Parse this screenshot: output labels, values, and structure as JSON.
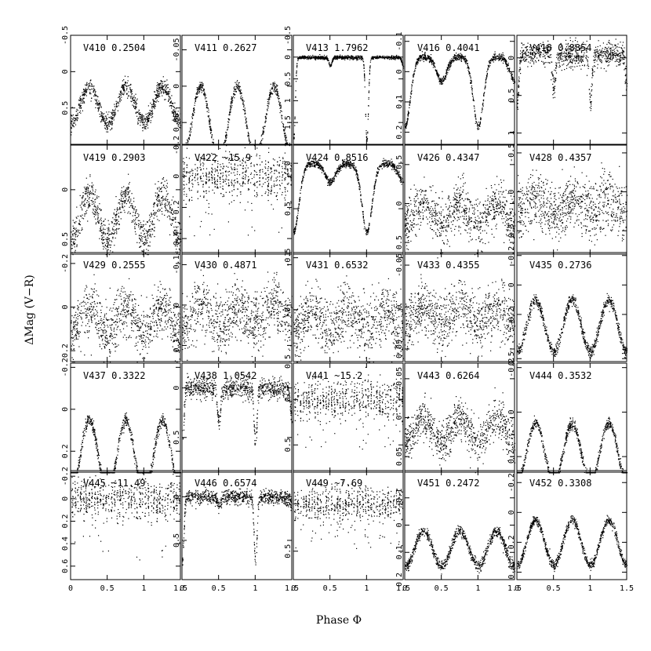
{
  "figure": {
    "xlabel": "Phase Φ",
    "ylabel": "ΔMag (V−R)"
  },
  "chart_data": {
    "type": "scatter",
    "rows": 5,
    "cols": 5,
    "xlim": [
      0,
      1.5
    ],
    "x_ticks": [
      0,
      0.5,
      1,
      1.5
    ],
    "x_tick_labels": [
      "0",
      "0.5",
      "1",
      "1.5"
    ],
    "y_inverted": true,
    "panels": [
      {
        "star": "V410",
        "period": "0.2504",
        "ylim": [
          -0.5,
          1.0
        ],
        "y_ticks": [
          -0.5,
          0,
          0.5
        ],
        "y_tick_labels": [
          "-0.5",
          "0",
          "0.5"
        ],
        "shape": "w_uma",
        "center": 0.2,
        "amp": 0.5,
        "noise": 0.06
      },
      {
        "star": "V411",
        "period": "0.2627",
        "ylim": [
          -0.07,
          0.08
        ],
        "y_ticks": [
          -0.05,
          0,
          0.05
        ],
        "y_tick_labels": [
          "-0.05",
          "0",
          "0.05"
        ],
        "shape": "w_uma",
        "center": 0.0,
        "amp": 0.1,
        "noise": 0.004
      },
      {
        "star": "V413",
        "period": "1.7962",
        "ylim": [
          -0.5,
          2.0
        ],
        "y_ticks": [
          -0.5,
          0,
          0.5,
          1,
          1.5,
          2
        ],
        "y_tick_labels": [
          "-0.5",
          "0",
          "0.5",
          "1",
          "1.5",
          "2"
        ],
        "shape": "algol_narrow",
        "center": 0.0,
        "amp": 1.9,
        "secondary": 0.2,
        "noise": 0.02
      },
      {
        "star": "V416",
        "period": "0.4041",
        "ylim": [
          -0.12,
          0.24
        ],
        "y_ticks": [
          -0.1,
          0,
          0.1,
          0.2
        ],
        "y_tick_labels": [
          "-0.1",
          "0",
          "0.1",
          "0.2"
        ],
        "shape": "algol",
        "center": -0.05,
        "amp": 0.23,
        "secondary": 0.08,
        "noise": 0.006
      },
      {
        "star": "V418",
        "period": "0.8854",
        "ylim": [
          -0.3,
          1.15
        ],
        "y_ticks": [
          0,
          0.5,
          1
        ],
        "y_tick_labels": [
          "0",
          "0.5",
          "1"
        ],
        "shape": "algol_narrow",
        "center": -0.05,
        "amp": 0.65,
        "secondary": 0.45,
        "noise": 0.08
      },
      {
        "star": "V419",
        "period": "0.2903",
        "ylim": [
          -0.45,
          0.65
        ],
        "y_ticks": [
          0,
          0.5
        ],
        "y_tick_labels": [
          "0",
          "0.5"
        ],
        "shape": "w_uma",
        "center": 0.05,
        "amp": 0.45,
        "noise": 0.09
      },
      {
        "star": "V422",
        "period": "~15.9",
        "ylim": [
          -0.2,
          0.5
        ],
        "y_ticks": [
          -0.2,
          0,
          0.2,
          0.4
        ],
        "y_tick_labels": [
          "-0.2",
          "0",
          "0.2",
          "0.4"
        ],
        "shape": "banded",
        "center": 0.0,
        "amp": 0.4,
        "noise": 0.04
      },
      {
        "star": "V424",
        "period": "0.8516",
        "ylim": [
          -0.2,
          1.0
        ],
        "y_ticks": [
          0,
          0.5,
          1
        ],
        "y_tick_labels": [
          "0",
          "0.5",
          "1"
        ],
        "shape": "algol",
        "center": 0.0,
        "amp": 0.75,
        "secondary": 0.2,
        "noise": 0.02
      },
      {
        "star": "V426",
        "period": "0.4347",
        "ylim": [
          -0.75,
          0.65
        ],
        "y_ticks": [
          -0.5,
          0,
          0.5
        ],
        "y_tick_labels": [
          "-0.5",
          "0",
          "0.5"
        ],
        "shape": "w_uma",
        "center": 0.0,
        "amp": 0.25,
        "noise": 0.15
      },
      {
        "star": "V428",
        "period": "0.4357",
        "ylim": [
          -0.6,
          0.8
        ],
        "y_ticks": [
          -0.5,
          0,
          0.5
        ],
        "y_tick_labels": [
          "-0.5",
          "0",
          "0.5"
        ],
        "shape": "w_uma",
        "center": 0.1,
        "amp": 0.15,
        "noise": 0.18
      },
      {
        "star": "V429",
        "period": "0.2555",
        "ylim": [
          -0.25,
          0.25
        ],
        "y_ticks": [
          -0.2,
          0,
          0.2
        ],
        "y_tick_labels": [
          "-0.2",
          "0",
          "0.2"
        ],
        "shape": "w_uma",
        "center": 0.0,
        "amp": 0.12,
        "noise": 0.06
      },
      {
        "star": "V430",
        "period": "0.4871",
        "ylim": [
          -0.13,
          0.14
        ],
        "y_ticks": [
          -0.1,
          0,
          0.1
        ],
        "y_tick_labels": [
          "-0.1",
          "0",
          "0.1"
        ],
        "shape": "w_uma",
        "center": 0.0,
        "amp": 0.05,
        "noise": 0.035
      },
      {
        "star": "V431",
        "period": "0.6532",
        "ylim": [
          -0.55,
          0.5
        ],
        "y_ticks": [
          -0.5,
          0,
          0.5
        ],
        "y_tick_labels": [
          "-0.5",
          "0",
          "0.5"
        ],
        "shape": "w_uma",
        "center": 0.0,
        "amp": 0.2,
        "noise": 0.14
      },
      {
        "star": "V433",
        "period": "0.4355",
        "ylim": [
          -0.065,
          0.065
        ],
        "y_ticks": [
          -0.05,
          0,
          0.05
        ],
        "y_tick_labels": [
          "-0.05",
          "0",
          "0.05"
        ],
        "shape": "w_uma",
        "center": 0.0,
        "amp": 0.02,
        "noise": 0.016
      },
      {
        "star": "V435",
        "period": "0.2736",
        "ylim": [
          -0.22,
          0.52
        ],
        "y_ticks": [
          -0.2,
          0,
          0.2,
          0.5
        ],
        "y_tick_labels": [
          "-0.2",
          "0",
          "0.2",
          "0.5"
        ],
        "shape": "w_uma",
        "center": 0.1,
        "amp": 0.35,
        "noise": 0.02
      },
      {
        "star": "V437",
        "period": "0.3322",
        "ylim": [
          -0.22,
          0.3
        ],
        "y_ticks": [
          -0.2,
          0,
          0.2
        ],
        "y_tick_labels": [
          "-0.2",
          "0",
          "0.2"
        ],
        "shape": "w_uma",
        "center": 0.05,
        "amp": 0.35,
        "noise": 0.015
      },
      {
        "star": "V438",
        "period": "1.0542",
        "ylim": [
          -0.25,
          0.85
        ],
        "y_ticks": [
          0,
          0.5
        ],
        "y_tick_labels": [
          "0",
          "0.5"
        ],
        "shape": "algol_narrow",
        "center": 0.0,
        "amp": 0.55,
        "secondary": 0.35,
        "noise": 0.05
      },
      {
        "star": "V441",
        "period": "~15.2",
        "ylim": [
          -0.4,
          0.8
        ],
        "y_ticks": [
          0,
          0.5
        ],
        "y_tick_labels": [
          "0",
          "0.5"
        ],
        "shape": "banded",
        "center": 0.0,
        "amp": 0.55,
        "noise": 0.06
      },
      {
        "star": "V443",
        "period": "0.6264",
        "ylim": [
          -0.07,
          0.07
        ],
        "y_ticks": [
          -0.05,
          0,
          0.05
        ],
        "y_tick_labels": [
          "-0.05",
          "0",
          "0.05"
        ],
        "shape": "w_uma",
        "center": 0.0,
        "amp": 0.03,
        "noise": 0.013
      },
      {
        "star": "V444",
        "period": "0.3532",
        "ylim": [
          -0.22,
          0.27
        ],
        "y_ticks": [
          -0.2,
          0,
          0.2
        ],
        "y_tick_labels": [
          "-0.2",
          "0",
          "0.2"
        ],
        "shape": "w_uma",
        "center": 0.05,
        "amp": 0.26,
        "noise": 0.012
      },
      {
        "star": "V445",
        "period": "~11.49",
        "ylim": [
          -0.25,
          0.72
        ],
        "y_ticks": [
          -0.2,
          0,
          0.2,
          0.4,
          0.6
        ],
        "y_tick_labels": [
          "-0.2",
          "0",
          "0.2",
          "0.4",
          "0.6"
        ],
        "shape": "banded",
        "center": 0.0,
        "amp": 0.55,
        "noise": 0.05
      },
      {
        "star": "V446",
        "period": "0.6574",
        "ylim": [
          -0.3,
          0.95
        ],
        "y_ticks": [
          0,
          0.5
        ],
        "y_tick_labels": [
          "0",
          "0.5"
        ],
        "shape": "algol_narrow",
        "center": 0.0,
        "amp": 0.75,
        "secondary": 0.1,
        "noise": 0.04
      },
      {
        "star": "V449",
        "period": "~7.69",
        "ylim": [
          -0.35,
          0.8
        ],
        "y_ticks": [
          0,
          0.5
        ],
        "y_tick_labels": [
          "0",
          "0.5"
        ],
        "shape": "banded",
        "center": 0.0,
        "amp": 0.5,
        "noise": 0.05
      },
      {
        "star": "V451",
        "period": "0.2472",
        "ylim": [
          -0.2,
          0.2
        ],
        "y_ticks": [
          -0.1,
          0,
          0.1,
          0.2
        ],
        "y_tick_labels": [
          "-0.1",
          "0",
          "0.1",
          "0.2"
        ],
        "shape": "w_uma",
        "center": 0.02,
        "amp": 0.13,
        "noise": 0.01
      },
      {
        "star": "V452",
        "period": "0.3308",
        "ylim": [
          -0.28,
          0.45
        ],
        "y_ticks": [
          -0.2,
          0,
          0.2,
          0.4
        ],
        "y_tick_labels": [
          "-0.2",
          "0",
          "0.2",
          "0.4"
        ],
        "shape": "w_uma",
        "center": 0.05,
        "amp": 0.3,
        "noise": 0.015
      }
    ]
  }
}
